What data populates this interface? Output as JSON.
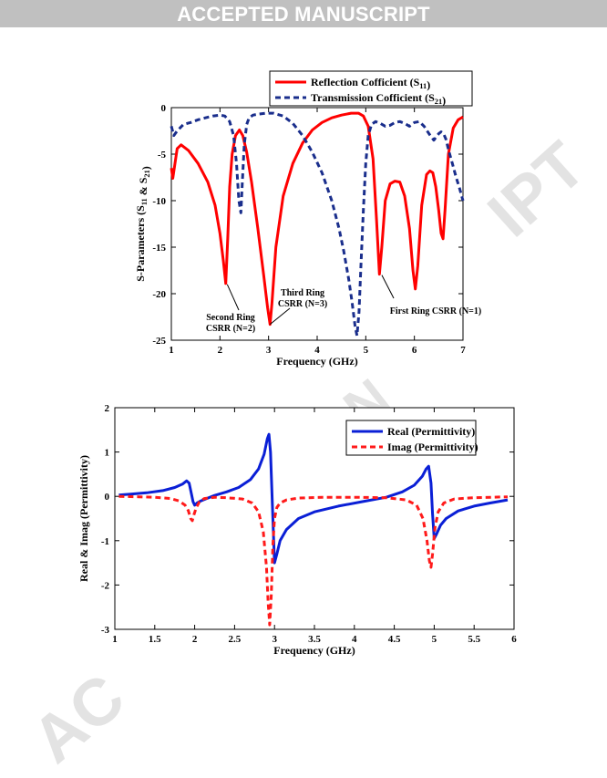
{
  "header": {
    "banner": "ACCEPTED MANUSCRIPT"
  },
  "watermark": {
    "text_ac": "AC",
    "text_ipt": "IPT",
    "text_an": "AN"
  },
  "chart_data": [
    {
      "type": "line",
      "title": "",
      "xlabel": "Frequency (GHz)",
      "ylabel": "S-Parameters (S11 & S21)",
      "xlim": [
        1,
        7
      ],
      "ylim": [
        -25,
        0
      ],
      "xticks": [
        "1",
        "2",
        "3",
        "4",
        "5",
        "6",
        "7"
      ],
      "yticks": [
        "0",
        "-5",
        "-10",
        "-15",
        "-20",
        "-25"
      ],
      "legend_position": "top-right",
      "series": [
        {
          "name": "Reflection Cofficient (S11)",
          "color": "#ff0000",
          "style": "solid",
          "x": [
            1.0,
            1.03,
            1.07,
            1.12,
            1.2,
            1.35,
            1.55,
            1.75,
            1.9,
            2.0,
            2.07,
            2.12,
            2.16,
            2.2,
            2.25,
            2.32,
            2.4,
            2.47,
            2.55,
            2.65,
            2.78,
            2.9,
            2.98,
            3.03,
            3.07,
            3.15,
            3.3,
            3.5,
            3.7,
            3.9,
            4.1,
            4.3,
            4.5,
            4.7,
            4.85,
            4.95,
            5.05,
            5.15,
            5.22,
            5.28,
            5.33,
            5.4,
            5.5,
            5.6,
            5.7,
            5.8,
            5.9,
            5.97,
            6.02,
            6.07,
            6.15,
            6.25,
            6.32,
            6.38,
            6.44,
            6.5,
            6.55,
            6.59,
            6.63,
            6.7,
            6.8,
            6.9,
            7.0
          ],
          "y": [
            -6.5,
            -7.6,
            -6.2,
            -4.4,
            -4.0,
            -4.6,
            -6.0,
            -8.0,
            -10.5,
            -13.5,
            -16.5,
            -18.9,
            -14.0,
            -8.5,
            -5.0,
            -3.0,
            -2.4,
            -3.0,
            -4.8,
            -8.0,
            -13.0,
            -18.0,
            -21.5,
            -23.3,
            -21.0,
            -15.0,
            -9.5,
            -6.0,
            -3.8,
            -2.4,
            -1.6,
            -1.1,
            -0.8,
            -0.6,
            -0.6,
            -0.9,
            -2.0,
            -5.5,
            -12.0,
            -17.9,
            -15.0,
            -10.0,
            -8.2,
            -7.9,
            -8.0,
            -9.5,
            -13.0,
            -17.5,
            -19.5,
            -17.0,
            -10.5,
            -7.2,
            -6.8,
            -7.0,
            -8.5,
            -11.0,
            -13.5,
            -14.1,
            -11.0,
            -5.0,
            -2.2,
            -1.3,
            -1.0
          ]
        },
        {
          "name": "Transmission Cofficient (S21)",
          "color": "#1a2e8c",
          "style": "dashed",
          "x": [
            1.0,
            1.05,
            1.12,
            1.25,
            1.4,
            1.55,
            1.7,
            1.85,
            2.0,
            2.1,
            2.2,
            2.28,
            2.34,
            2.39,
            2.43,
            2.46,
            2.5,
            2.55,
            2.6,
            2.68,
            2.8,
            2.95,
            3.1,
            3.3,
            3.5,
            3.7,
            3.9,
            4.1,
            4.3,
            4.45,
            4.55,
            4.65,
            4.72,
            4.78,
            4.82,
            4.86,
            4.9,
            4.95,
            5.0,
            5.05,
            5.12,
            5.2,
            5.3,
            5.4,
            5.5,
            5.6,
            5.7,
            5.8,
            5.9,
            6.0,
            6.1,
            6.2,
            6.3,
            6.4,
            6.5,
            6.55,
            6.6,
            6.65,
            6.7,
            6.78,
            6.86,
            6.93,
            7.0
          ],
          "y": [
            -2.0,
            -3.0,
            -2.5,
            -1.8,
            -1.6,
            -1.3,
            -1.1,
            -0.9,
            -0.8,
            -0.9,
            -1.5,
            -3.0,
            -6.0,
            -10.0,
            -11.3,
            -8.0,
            -4.0,
            -1.8,
            -1.1,
            -0.8,
            -0.7,
            -0.6,
            -0.6,
            -0.9,
            -1.7,
            -3.0,
            -4.8,
            -7.0,
            -10.0,
            -13.0,
            -15.5,
            -18.5,
            -21.0,
            -23.5,
            -24.5,
            -22.0,
            -17.0,
            -11.0,
            -6.0,
            -3.0,
            -1.8,
            -1.5,
            -1.7,
            -2.0,
            -1.9,
            -1.6,
            -1.5,
            -1.7,
            -2.0,
            -1.6,
            -1.5,
            -2.0,
            -2.8,
            -3.5,
            -2.8,
            -2.6,
            -2.8,
            -3.4,
            -4.5,
            -6.0,
            -7.5,
            -8.7,
            -10.0
          ]
        }
      ],
      "annotations": [
        {
          "lines": [
            "Second Ring",
            "CSRR (N=2)"
          ],
          "x": 2.15,
          "y": -19.0
        },
        {
          "lines": [
            "Third Ring",
            "CSRR (N=3)"
          ],
          "x": 3.03,
          "y": -23.3
        },
        {
          "lines": [
            "First Ring CSRR (N=1)"
          ],
          "x": 5.33,
          "y": -18.0
        }
      ]
    },
    {
      "type": "line",
      "title": "",
      "xlabel": "Frequency (GHz)",
      "ylabel": "Real & Imag (Permittivity)",
      "xlim": [
        1,
        6
      ],
      "ylim": [
        -3,
        2
      ],
      "xticks": [
        "1",
        "1.5",
        "2",
        "2.5",
        "3",
        "3.5",
        "4",
        "4.5",
        "5",
        "5.5",
        "6"
      ],
      "yticks": [
        "2",
        "1",
        "0",
        "-1",
        "-2",
        "-3"
      ],
      "legend_position": "top-right",
      "series": [
        {
          "name": "Real (Permittivity)",
          "color": "#0a1fd6",
          "style": "solid",
          "x": [
            1.05,
            1.2,
            1.4,
            1.6,
            1.75,
            1.85,
            1.9,
            1.93,
            1.96,
            1.98,
            2.0,
            2.03,
            2.08,
            2.15,
            2.25,
            2.4,
            2.55,
            2.7,
            2.8,
            2.87,
            2.91,
            2.93,
            2.95,
            2.98,
            3.0,
            3.03,
            3.07,
            3.15,
            3.3,
            3.5,
            3.8,
            4.1,
            4.4,
            4.6,
            4.75,
            4.85,
            4.9,
            4.93,
            4.96,
            4.98,
            5.0,
            5.03,
            5.08,
            5.15,
            5.3,
            5.5,
            5.7,
            5.92
          ],
          "y": [
            0.03,
            0.05,
            0.08,
            0.13,
            0.2,
            0.28,
            0.35,
            0.3,
            0.05,
            -0.12,
            -0.2,
            -0.15,
            -0.1,
            -0.05,
            0.02,
            0.1,
            0.2,
            0.38,
            0.62,
            0.95,
            1.3,
            1.4,
            1.0,
            -0.5,
            -1.5,
            -1.3,
            -1.0,
            -0.75,
            -0.5,
            -0.35,
            -0.22,
            -0.12,
            -0.02,
            0.1,
            0.25,
            0.45,
            0.62,
            0.68,
            0.3,
            -0.4,
            -0.95,
            -0.85,
            -0.65,
            -0.5,
            -0.33,
            -0.22,
            -0.15,
            -0.08
          ]
        },
        {
          "name": "Imag (Permittivity)",
          "color": "#ff1a1a",
          "style": "dashed",
          "x": [
            1.05,
            1.3,
            1.5,
            1.7,
            1.8,
            1.88,
            1.92,
            1.95,
            1.97,
            1.99,
            2.02,
            2.06,
            2.12,
            2.25,
            2.4,
            2.6,
            2.72,
            2.8,
            2.86,
            2.9,
            2.92,
            2.94,
            2.96,
            2.98,
            3.0,
            3.03,
            3.07,
            3.15,
            3.3,
            3.6,
            4.0,
            4.4,
            4.65,
            4.78,
            4.86,
            4.91,
            4.94,
            4.96,
            4.98,
            5.01,
            5.05,
            5.12,
            5.25,
            5.5,
            5.92
          ],
          "y": [
            0.0,
            -0.01,
            -0.02,
            -0.05,
            -0.1,
            -0.2,
            -0.32,
            -0.5,
            -0.55,
            -0.42,
            -0.25,
            -0.12,
            -0.05,
            -0.02,
            -0.03,
            -0.06,
            -0.15,
            -0.35,
            -0.8,
            -1.6,
            -2.4,
            -2.9,
            -2.2,
            -1.1,
            -0.5,
            -0.25,
            -0.15,
            -0.08,
            -0.04,
            -0.02,
            -0.02,
            -0.03,
            -0.08,
            -0.2,
            -0.5,
            -1.0,
            -1.45,
            -1.6,
            -1.3,
            -0.7,
            -0.35,
            -0.15,
            -0.06,
            -0.03,
            -0.01
          ]
        }
      ]
    }
  ]
}
